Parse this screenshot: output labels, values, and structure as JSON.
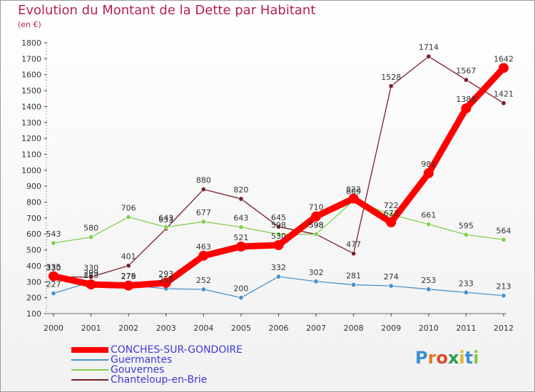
{
  "title": "Evolution du Montant de la Dette par Habitant",
  "subtitle": "(en €)",
  "brand": {
    "letters": [
      "P",
      "r",
      "o",
      "x",
      "i",
      "t",
      "i"
    ],
    "colors": [
      "#3a8fd8",
      "#e07a1f",
      "#e04a2a",
      "#2aa04a",
      "#e0b81f",
      "#3a8fd8",
      "#8cc63f"
    ]
  },
  "chart_data": {
    "type": "line",
    "x": [
      "2000",
      "2001",
      "2002",
      "2003",
      "2004",
      "2005",
      "2006",
      "2007",
      "2008",
      "2009",
      "2010",
      "2011",
      "2012"
    ],
    "ylim": [
      100,
      1800
    ],
    "yticks": [
      100,
      200,
      300,
      400,
      500,
      600,
      700,
      800,
      900,
      1000,
      1100,
      1200,
      1300,
      1400,
      1500,
      1600,
      1700,
      1800
    ],
    "grid": false,
    "legend_position": "bottom-left",
    "series": [
      {
        "name": "CONCHES-SUR-GONDOIRE",
        "color": "#ff0000",
        "values": [
          335,
          283,
          276,
          293,
          463,
          521,
          530,
          710,
          822,
          673,
          981,
          1388,
          1642
        ],
        "labels": [
          "335",
          "283",
          "276",
          "293",
          "463",
          "521",
          "530",
          "710",
          "822",
          "673",
          "981",
          "1388",
          "1642"
        ]
      },
      {
        "name": "Guermantes",
        "color": "#4a90c8",
        "values": [
          227,
          299,
          279,
          256,
          252,
          200,
          332,
          302,
          281,
          274,
          253,
          233,
          213
        ],
        "labels": [
          "227",
          "299",
          "279",
          "256",
          "252",
          "200",
          "332",
          "302",
          "281",
          "274",
          "253",
          "233",
          "213"
        ]
      },
      {
        "name": "Gouvernes",
        "color": "#7fd04a",
        "values": [
          543,
          580,
          706,
          643,
          677,
          643,
          598,
          598,
          809,
          722,
          661,
          595,
          564
        ],
        "labels": [
          "543",
          "580",
          "706",
          "643",
          "677",
          "643",
          "598",
          "598",
          "809",
          "722",
          "661",
          "595",
          "564"
        ]
      },
      {
        "name": "Chanteloup-en-Brie",
        "color": "#7a1f2a",
        "values": [
          330,
          330,
          401,
          633,
          880,
          820,
          645,
          598,
          477,
          1528,
          1714,
          1567,
          1421
        ],
        "labels": [
          "330",
          "330",
          "401",
          "633",
          "880",
          "820",
          "645",
          "598",
          "477",
          "1528",
          "1714",
          "1567",
          "1421"
        ]
      }
    ]
  }
}
